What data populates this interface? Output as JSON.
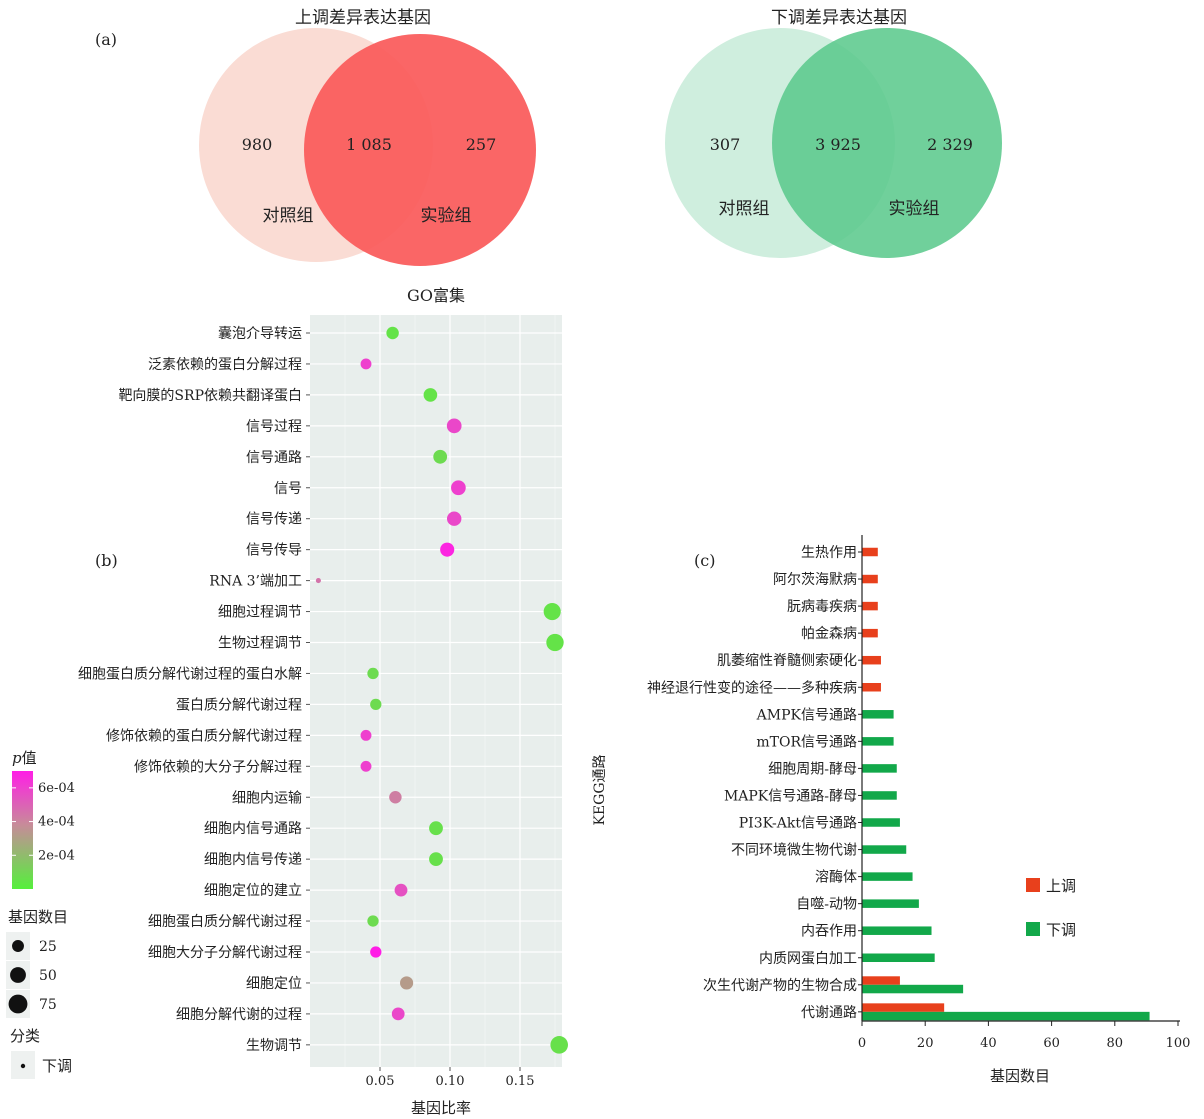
{
  "panel_labels": {
    "a": "(a)",
    "b": "(b)",
    "c": "(c)"
  },
  "venn_up": {
    "title": "上调差异表达基因",
    "left_value": "980",
    "middle_value": "1 085",
    "right_value": "257",
    "left_label": "对照组",
    "right_label": "实验组",
    "left_color": "#fadcd4",
    "right_color": "#fa5a5a"
  },
  "venn_down": {
    "title": "下调差异表达基因",
    "left_value": "307",
    "middle_value": "3 925",
    "right_value": "2 329",
    "left_label": "对照组",
    "right_label": "实验组",
    "left_color": "#cfeede",
    "right_color": "#5cc98d"
  },
  "chart_data": [
    {
      "type": "scatter",
      "title": "GO富集",
      "xlabel": "基因比率",
      "ylabel": "",
      "xlim": [
        0.0,
        0.18
      ],
      "x_ticks": [
        0.05,
        0.1,
        0.15
      ],
      "x_tick_labels": [
        "0.05",
        "0.10",
        "0.15"
      ],
      "grid": true,
      "background": "#e8eeec",
      "categories": [
        "囊泡介导转运",
        "泛素依赖的蛋白分解过程",
        "靶向膜的SRP依赖共翻译蛋白",
        "信号过程",
        "信号通路",
        "信号",
        "信号传递",
        "信号传导",
        "RNA 3’端加工",
        "细胞过程调节",
        "生物过程调节",
        "细胞蛋白质分解代谢过程的蛋白水解",
        "蛋白质分解代谢过程",
        "修饰依赖的蛋白质分解代谢过程",
        "修饰依赖的大分子分解过程",
        "细胞内运输",
        "细胞内信号通路",
        "细胞内信号传递",
        "细胞定位的建立",
        "细胞蛋白质分解代谢过程",
        "细胞大分子分解代谢过程",
        "细胞定位",
        "细胞分解代谢的过程",
        "生物调节"
      ],
      "points": [
        {
          "category": "囊泡介导转运",
          "x": 0.059,
          "count": 28,
          "p": 5e-05
        },
        {
          "category": "泛素依赖的蛋白分解过程",
          "x": 0.04,
          "count": 20,
          "p": 0.0006
        },
        {
          "category": "靶向膜的SRP依赖共翻译蛋白",
          "x": 0.086,
          "count": 35,
          "p": 5e-05
        },
        {
          "category": "信号过程",
          "x": 0.103,
          "count": 42,
          "p": 0.00058
        },
        {
          "category": "信号通路",
          "x": 0.093,
          "count": 36,
          "p": 8e-05
        },
        {
          "category": "信号",
          "x": 0.106,
          "count": 42,
          "p": 0.0006
        },
        {
          "category": "信号传递",
          "x": 0.103,
          "count": 40,
          "p": 0.00058
        },
        {
          "category": "信号传导",
          "x": 0.098,
          "count": 38,
          "p": 0.00068
        },
        {
          "category": "RNA 3’端加工",
          "x": 0.006,
          "count": 2,
          "p": 0.00045
        },
        {
          "category": "细胞过程调节",
          "x": 0.173,
          "count": 60,
          "p": 5e-05
        },
        {
          "category": "生物过程调节",
          "x": 0.175,
          "count": 62,
          "p": 5e-05
        },
        {
          "category": "细胞蛋白质分解代谢过程的蛋白水解",
          "x": 0.045,
          "count": 22,
          "p": 8e-05
        },
        {
          "category": "蛋白质分解代谢过程",
          "x": 0.047,
          "count": 22,
          "p": 8e-05
        },
        {
          "category": "修饰依赖的蛋白质分解代谢过程",
          "x": 0.04,
          "count": 20,
          "p": 0.0006
        },
        {
          "category": "修饰依赖的大分子分解过程",
          "x": 0.04,
          "count": 20,
          "p": 0.0006
        },
        {
          "category": "细胞内运输",
          "x": 0.061,
          "count": 28,
          "p": 0.00042
        },
        {
          "category": "细胞内信号通路",
          "x": 0.09,
          "count": 36,
          "p": 6e-05
        },
        {
          "category": "细胞内信号传递",
          "x": 0.09,
          "count": 36,
          "p": 6e-05
        },
        {
          "category": "细胞定位的建立",
          "x": 0.065,
          "count": 30,
          "p": 0.00055
        },
        {
          "category": "细胞蛋白质分解代谢过程",
          "x": 0.045,
          "count": 22,
          "p": 8e-05
        },
        {
          "category": "细胞大分子分解代谢过程",
          "x": 0.047,
          "count": 22,
          "p": 0.0007
        },
        {
          "category": "细胞定位",
          "x": 0.069,
          "count": 32,
          "p": 0.00032
        },
        {
          "category": "细胞分解代谢的过程",
          "x": 0.063,
          "count": 30,
          "p": 0.00058
        },
        {
          "category": "生物调节",
          "x": 0.178,
          "count": 64,
          "p": 6e-05
        }
      ],
      "color_legend": {
        "title_prefix": "p",
        "title_suffix": "值",
        "ticks": [
          "6e-04",
          "4e-04",
          "2e-04"
        ],
        "tick_values": [
          0.0006,
          0.0004,
          0.0002
        ],
        "range": [
          0.0,
          0.0007
        ],
        "low_color": "#55f03c",
        "high_color": "#ff1ee6"
      },
      "size_legend": {
        "title": "基因数目",
        "labels": [
          "25",
          "50",
          "75"
        ],
        "values": [
          25,
          50,
          75
        ]
      },
      "shape_legend": {
        "title": "分类",
        "labels": [
          "下调"
        ]
      }
    },
    {
      "type": "bar",
      "orientation": "horizontal",
      "xlabel": "基因数目",
      "ylabel": "KEGG通路",
      "xlim": [
        0,
        100
      ],
      "x_ticks": [
        "0",
        "20",
        "40",
        "60",
        "80",
        "100"
      ],
      "categories": [
        "生热作用",
        "阿尔茨海默病",
        "朊病毒疾病",
        "帕金森病",
        "肌萎缩性脊髓侧索硬化",
        "神经退行性变的途径——多种疾病",
        "AMPK信号通路",
        "mTOR信号通路",
        "细胞周期-酵母",
        "MAPK信号通路-酵母",
        "PI3K-Akt信号通路",
        "不同环境微生物代谢",
        "溶酶体",
        "自噬-动物",
        "内吞作用",
        "内质网蛋白加工",
        "次生代谢产物的生物合成",
        "代谢通路"
      ],
      "series": [
        {
          "name": "上调",
          "color": "#e8401c",
          "values": [
            5,
            5,
            5,
            5,
            6,
            6,
            0,
            0,
            0,
            0,
            0,
            0,
            0,
            0,
            0,
            0,
            12,
            26
          ]
        },
        {
          "name": "下调",
          "color": "#12a84a",
          "values": [
            0,
            0,
            0,
            0,
            0,
            0,
            10,
            10,
            11,
            11,
            12,
            14,
            16,
            18,
            22,
            23,
            32,
            91
          ]
        }
      ],
      "legend": "right"
    }
  ]
}
